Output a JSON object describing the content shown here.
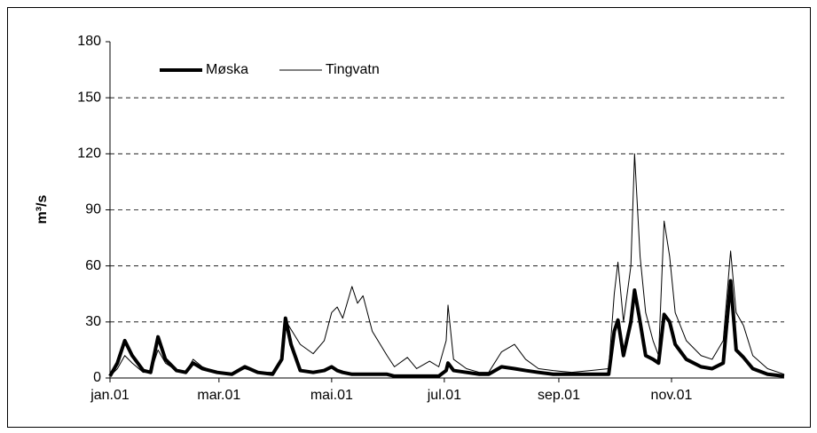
{
  "chart_data": {
    "type": "line",
    "y_label": "m³/s",
    "x": [
      0,
      4,
      8,
      12,
      18,
      22,
      26,
      30,
      36,
      41,
      45,
      50,
      58,
      66,
      73,
      80,
      88,
      93,
      95,
      98,
      103,
      110,
      116,
      120,
      123,
      126,
      131,
      134,
      137,
      142,
      150,
      154,
      161,
      166,
      173,
      178,
      182,
      183,
      186,
      193,
      200,
      205,
      212,
      219,
      225,
      232,
      240,
      250,
      260,
      270,
      273,
      275,
      278,
      282,
      284,
      287,
      290,
      294,
      297,
      300,
      303,
      306,
      312,
      320,
      326,
      332,
      336,
      339,
      343,
      348,
      356,
      365
    ],
    "series": [
      {
        "name": "Møska",
        "color": "#000000",
        "width": 4,
        "values": [
          1,
          8,
          20,
          12,
          4,
          3,
          22,
          10,
          4,
          3,
          8,
          5,
          3,
          2,
          6,
          3,
          2,
          10,
          32,
          18,
          4,
          3,
          4,
          6,
          4,
          3,
          2,
          2,
          2,
          2,
          2,
          1,
          1,
          1,
          1,
          1,
          4,
          8,
          4,
          3,
          2,
          2,
          6,
          5,
          4,
          3,
          2,
          2,
          2,
          2,
          25,
          31,
          12,
          30,
          47,
          30,
          12,
          10,
          8,
          34,
          30,
          18,
          10,
          6,
          5,
          8,
          52,
          15,
          11,
          5,
          2,
          1
        ]
      },
      {
        "name": "Tingvatn",
        "color": "#000000",
        "width": 1,
        "values": [
          1,
          5,
          12,
          8,
          3,
          3,
          15,
          8,
          4,
          3,
          10,
          6,
          3,
          2,
          5,
          3,
          3,
          10,
          31,
          26,
          18,
          13,
          20,
          35,
          38,
          32,
          49,
          40,
          44,
          25,
          12,
          6,
          11,
          5,
          9,
          6,
          20,
          39,
          10,
          5,
          3,
          3,
          14,
          18,
          10,
          5,
          4,
          3,
          4,
          5,
          45,
          62,
          30,
          60,
          120,
          65,
          35,
          20,
          12,
          84,
          65,
          35,
          20,
          12,
          10,
          20,
          68,
          35,
          28,
          12,
          5,
          2
        ]
      }
    ],
    "xlim": [
      0,
      365
    ],
    "xticks": [
      {
        "value": 0,
        "label": "jan.01"
      },
      {
        "value": 59,
        "label": "mar.01"
      },
      {
        "value": 120,
        "label": "mai.01"
      },
      {
        "value": 181,
        "label": "jul.01"
      },
      {
        "value": 243,
        "label": "sep.01"
      },
      {
        "value": 304,
        "label": "nov.01"
      }
    ],
    "ylim": [
      0,
      180
    ],
    "yticks": [
      0,
      30,
      60,
      90,
      120,
      150,
      180
    ],
    "grid": true,
    "legend": "top-left"
  }
}
